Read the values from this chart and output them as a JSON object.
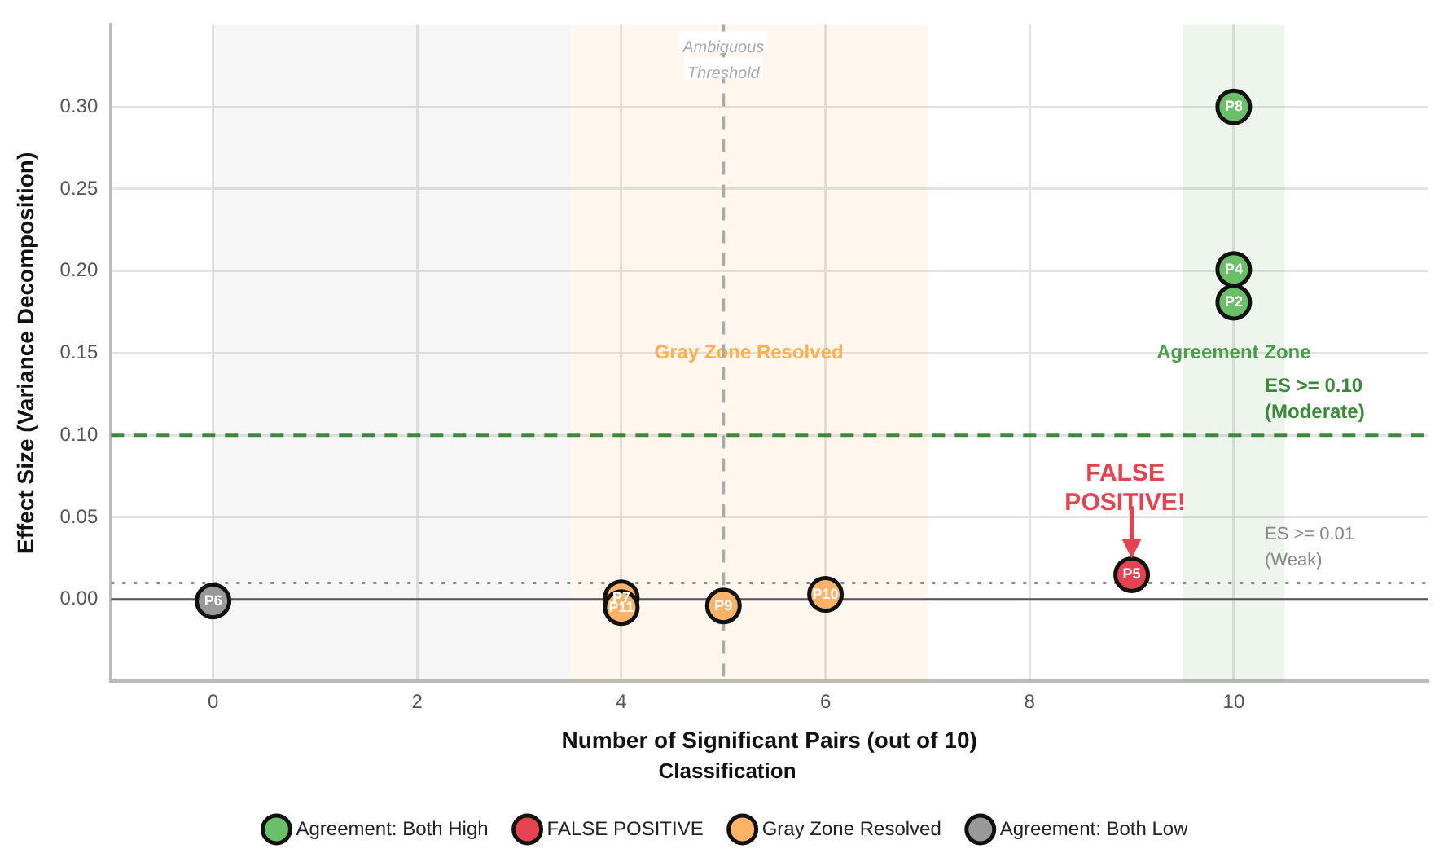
{
  "chart_data": {
    "type": "scatter",
    "xlabel": "Number of Significant Pairs (out of 10)",
    "ylabel": "Effect Size (Variance Decomposition)",
    "legend_title": "Classification",
    "xlim": [
      -1,
      11.9
    ],
    "ylim": [
      -0.05,
      0.35
    ],
    "xticks": [
      0,
      2,
      4,
      6,
      8,
      10
    ],
    "yticks": [
      {
        "value": 0,
        "label": "0.00"
      },
      {
        "value": 0.05,
        "label": "0.05"
      },
      {
        "value": 0.1,
        "label": "0.10"
      },
      {
        "value": 0.15,
        "label": "0.15"
      },
      {
        "value": 0.2,
        "label": "0.20"
      },
      {
        "value": 0.25,
        "label": "0.25"
      },
      {
        "value": 0.3,
        "label": "0.30"
      }
    ],
    "grid": true,
    "legend": "bottom",
    "marker": "circle",
    "series": [
      {
        "name": "Agreement: Both High",
        "color": "#6abf69",
        "x": [
          10,
          10,
          10
        ],
        "values": [
          0.3,
          0.201,
          0.181
        ],
        "value_labels": [
          "P8",
          "P4",
          "P2"
        ]
      },
      {
        "name": "FALSE POSITIVE",
        "color": "#e5434f",
        "x": [
          9
        ],
        "values": [
          0.015
        ],
        "value_labels": [
          "P5"
        ]
      },
      {
        "name": "Gray Zone Resolved",
        "color": "#ffb366",
        "x": [
          4,
          4,
          5,
          6
        ],
        "values": [
          0.001,
          -0.005,
          -0.004,
          0.003
        ],
        "value_labels": [
          "P7",
          "P11",
          "P9",
          "P10"
        ]
      },
      {
        "name": "Agreement: Both Low",
        "color": "#999999",
        "x": [
          0
        ],
        "values": [
          -0.001
        ],
        "value_labels": [
          "P6"
        ]
      }
    ],
    "bands": [
      {
        "axis": "x",
        "from": 9.5,
        "to": 10.5,
        "label": "Agreement Zone",
        "color": "#4a9e4a"
      },
      {
        "axis": "x",
        "from": 3.5,
        "to": 7,
        "label": "Gray Zone Resolved",
        "color": "#ffb04d"
      },
      {
        "axis": "x",
        "from": 0,
        "to": 3.5,
        "color": "#aaaaaa"
      }
    ],
    "ref_lines": [
      {
        "axis": "y",
        "value": 0.1,
        "label": "ES >= 0.10 (Moderate)",
        "color": "#3a8a3a",
        "line_style": "dashed"
      },
      {
        "axis": "y",
        "value": 0.01,
        "label": "ES >= 0.01 (Weak)",
        "color": "#888888",
        "line_style": "dotted"
      },
      {
        "axis": "y",
        "value": 0,
        "color": "#555555",
        "line_style": "solid"
      },
      {
        "axis": "x",
        "value": 5,
        "label": "Ambiguous Threshold",
        "color": "#aaaaaa",
        "line_style": "dashed"
      }
    ],
    "annotations": [
      {
        "text": "FALSE POSITIVE!",
        "x": 9,
        "y": 0.015
      }
    ]
  }
}
